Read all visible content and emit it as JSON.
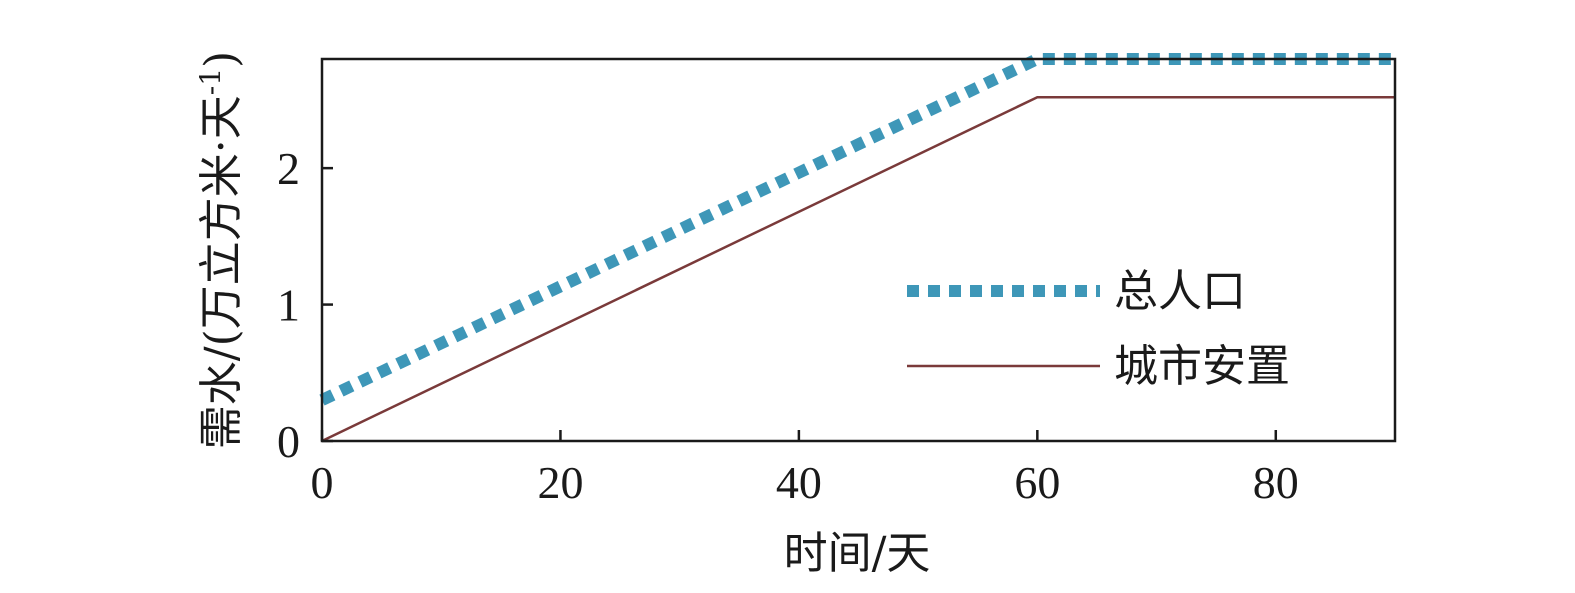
{
  "chart_data": {
    "type": "line",
    "title": "",
    "xlabel": "时间/天",
    "ylabel": "需水/(万立方米·天",
    "ylabel_sup": "-1",
    "ylabel_close": ")",
    "xlim": [
      0,
      90
    ],
    "ylim": [
      0,
      2.8
    ],
    "xticks": [
      0,
      20,
      40,
      60,
      80
    ],
    "yticks": [
      0,
      1,
      2
    ],
    "grid": false,
    "legend_position": "right",
    "series": [
      {
        "name": "总人口",
        "color": "#3e97b8",
        "style": "dotted",
        "x": [
          0,
          60,
          90
        ],
        "y": [
          0.3,
          2.8,
          2.8
        ]
      },
      {
        "name": "城市安置",
        "color": "#7a3a3a",
        "style": "solid",
        "x": [
          0,
          60,
          90
        ],
        "y": [
          0,
          2.52,
          2.52
        ]
      }
    ]
  }
}
